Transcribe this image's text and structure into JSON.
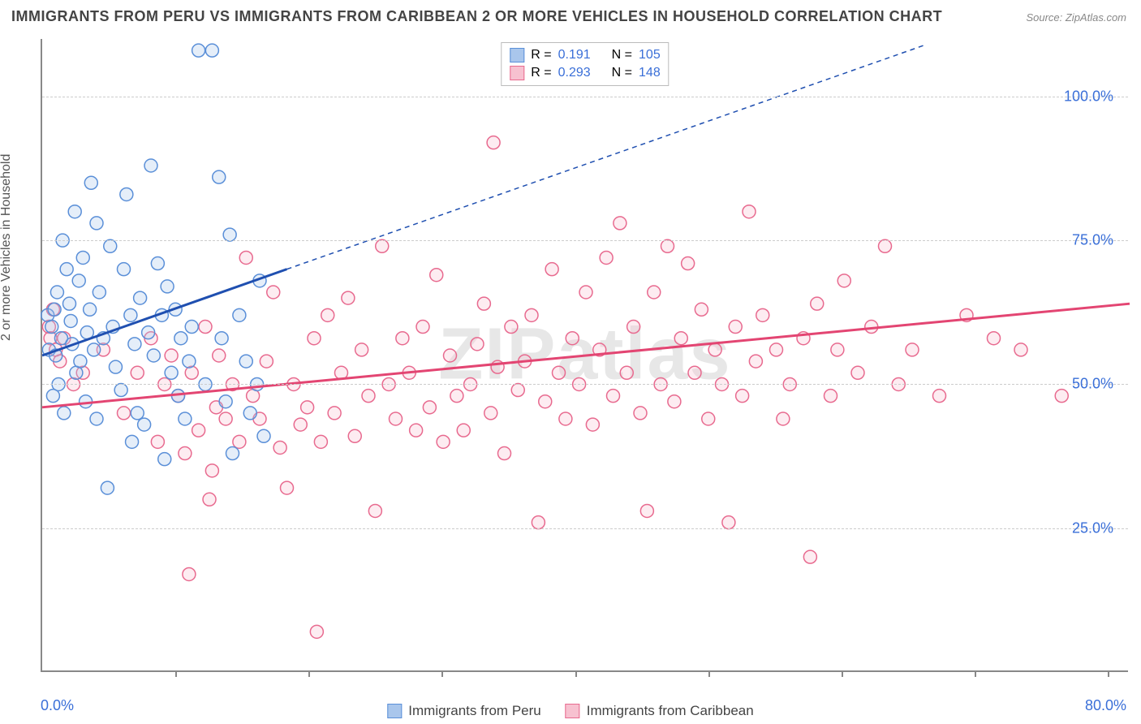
{
  "title": "IMMIGRANTS FROM PERU VS IMMIGRANTS FROM CARIBBEAN 2 OR MORE VEHICLES IN HOUSEHOLD CORRELATION CHART",
  "source": "Source: ZipAtlas.com",
  "watermark": "ZIPatlas",
  "ylabel": "2 or more Vehicles in Household",
  "chart": {
    "type": "scatter",
    "xlim": [
      0,
      80
    ],
    "ylim": [
      0,
      110
    ],
    "xticks": [
      0,
      80
    ],
    "xtick_labels": [
      "0.0%",
      "80.0%"
    ],
    "xtick_minor": [
      9.8,
      19.6,
      29.4,
      39.2,
      49.0,
      58.8,
      68.6,
      78.4
    ],
    "yticks": [
      25,
      50,
      75,
      100
    ],
    "ytick_labels": [
      "25.0%",
      "50.0%",
      "75.0%",
      "100.0%"
    ],
    "grid_color": "#cccccc",
    "axis_color": "#888888",
    "background_color": "#ffffff",
    "marker_radius": 8,
    "marker_stroke_width": 1.5,
    "marker_fill_opacity": 0.3,
    "trend_line_width": 3,
    "trend_dash": "6,5"
  },
  "series": [
    {
      "key": "peru",
      "label": "Immigrants from Peru",
      "color_stroke": "#5a8fd8",
      "color_fill": "#a9c6ec",
      "trend_color": "#1f4fb0",
      "R": "0.191",
      "N": "105",
      "trend": {
        "x1": 0,
        "y1": 55,
        "x2_solid": 18,
        "y2_solid": 70,
        "x2": 65,
        "y2": 109
      },
      "points": [
        [
          0.4,
          62
        ],
        [
          0.5,
          56
        ],
        [
          0.7,
          60
        ],
        [
          0.8,
          48
        ],
        [
          0.9,
          63
        ],
        [
          1.0,
          55
        ],
        [
          1.1,
          66
        ],
        [
          1.2,
          50
        ],
        [
          1.4,
          58
        ],
        [
          1.5,
          75
        ],
        [
          1.6,
          45
        ],
        [
          1.8,
          70
        ],
        [
          2.0,
          64
        ],
        [
          2.1,
          61
        ],
        [
          2.2,
          57
        ],
        [
          2.4,
          80
        ],
        [
          2.5,
          52
        ],
        [
          2.7,
          68
        ],
        [
          2.8,
          54
        ],
        [
          3.0,
          72
        ],
        [
          3.2,
          47
        ],
        [
          3.3,
          59
        ],
        [
          3.5,
          63
        ],
        [
          3.6,
          85
        ],
        [
          3.8,
          56
        ],
        [
          4.0,
          78
        ],
        [
          4.0,
          44
        ],
        [
          4.2,
          66
        ],
        [
          4.5,
          58
        ],
        [
          4.8,
          32
        ],
        [
          5.0,
          74
        ],
        [
          5.2,
          60
        ],
        [
          5.4,
          53
        ],
        [
          5.8,
          49
        ],
        [
          6.0,
          70
        ],
        [
          6.2,
          83
        ],
        [
          6.5,
          62
        ],
        [
          6.6,
          40
        ],
        [
          6.8,
          57
        ],
        [
          7.0,
          45
        ],
        [
          7.2,
          65
        ],
        [
          7.5,
          43
        ],
        [
          7.8,
          59
        ],
        [
          8.0,
          88
        ],
        [
          8.2,
          55
        ],
        [
          8.5,
          71
        ],
        [
          8.8,
          62
        ],
        [
          9.0,
          37
        ],
        [
          9.2,
          67
        ],
        [
          9.5,
          52
        ],
        [
          9.8,
          63
        ],
        [
          10.0,
          48
        ],
        [
          10.2,
          58
        ],
        [
          10.5,
          44
        ],
        [
          10.8,
          54
        ],
        [
          11.0,
          60
        ],
        [
          11.5,
          108
        ],
        [
          12.0,
          50
        ],
        [
          12.5,
          108
        ],
        [
          13.0,
          86
        ],
        [
          13.2,
          58
        ],
        [
          13.5,
          47
        ],
        [
          13.8,
          76
        ],
        [
          14.0,
          38
        ],
        [
          14.5,
          62
        ],
        [
          15.0,
          54
        ],
        [
          15.3,
          45
        ],
        [
          15.8,
          50
        ],
        [
          16.0,
          68
        ],
        [
          16.3,
          41
        ]
      ]
    },
    {
      "key": "caribbean",
      "label": "Immigrants from Caribbean",
      "color_stroke": "#e86a8f",
      "color_fill": "#f7c1d0",
      "trend_color": "#e34572",
      "R": "0.293",
      "N": "148",
      "trend": {
        "x1": 0,
        "y1": 46,
        "x2_solid": 80,
        "y2_solid": 64,
        "x2": 80,
        "y2": 64
      },
      "points": [
        [
          0.5,
          60
        ],
        [
          0.6,
          58
        ],
        [
          0.8,
          63
        ],
        [
          1.0,
          56
        ],
        [
          1.3,
          54
        ],
        [
          1.6,
          58
        ],
        [
          2.3,
          50
        ],
        [
          3.0,
          52
        ],
        [
          4.5,
          56
        ],
        [
          6.0,
          45
        ],
        [
          7.0,
          52
        ],
        [
          8.0,
          58
        ],
        [
          8.5,
          40
        ],
        [
          9.0,
          50
        ],
        [
          9.5,
          55
        ],
        [
          10.0,
          48
        ],
        [
          10.5,
          38
        ],
        [
          10.8,
          17
        ],
        [
          11.0,
          52
        ],
        [
          11.5,
          42
        ],
        [
          12.0,
          60
        ],
        [
          12.3,
          30
        ],
        [
          12.5,
          35
        ],
        [
          12.8,
          46
        ],
        [
          13.0,
          55
        ],
        [
          13.5,
          44
        ],
        [
          14.0,
          50
        ],
        [
          14.5,
          40
        ],
        [
          15.0,
          72
        ],
        [
          15.5,
          48
        ],
        [
          16.0,
          44
        ],
        [
          16.5,
          54
        ],
        [
          17.0,
          66
        ],
        [
          17.5,
          39
        ],
        [
          18.0,
          32
        ],
        [
          18.5,
          50
        ],
        [
          19.0,
          43
        ],
        [
          19.5,
          46
        ],
        [
          20.0,
          58
        ],
        [
          20.2,
          7
        ],
        [
          20.5,
          40
        ],
        [
          21.0,
          62
        ],
        [
          21.5,
          45
        ],
        [
          22.0,
          52
        ],
        [
          22.5,
          65
        ],
        [
          23.0,
          41
        ],
        [
          23.5,
          56
        ],
        [
          24.0,
          48
        ],
        [
          24.5,
          28
        ],
        [
          25.0,
          74
        ],
        [
          25.5,
          50
        ],
        [
          26.0,
          44
        ],
        [
          26.5,
          58
        ],
        [
          27.0,
          52
        ],
        [
          27.5,
          42
        ],
        [
          28.0,
          60
        ],
        [
          28.5,
          46
        ],
        [
          29.0,
          69
        ],
        [
          29.5,
          40
        ],
        [
          30.0,
          55
        ],
        [
          30.5,
          48
        ],
        [
          31.0,
          42
        ],
        [
          31.5,
          50
        ],
        [
          32.0,
          57
        ],
        [
          32.5,
          64
        ],
        [
          33.0,
          45
        ],
        [
          33.2,
          92
        ],
        [
          33.5,
          53
        ],
        [
          34.0,
          38
        ],
        [
          34.5,
          60
        ],
        [
          35.0,
          49
        ],
        [
          35.5,
          54
        ],
        [
          36.0,
          62
        ],
        [
          36.5,
          26
        ],
        [
          37.0,
          47
        ],
        [
          37.5,
          70
        ],
        [
          38.0,
          52
        ],
        [
          38.5,
          44
        ],
        [
          39.0,
          58
        ],
        [
          39.5,
          50
        ],
        [
          40.0,
          66
        ],
        [
          40.5,
          43
        ],
        [
          41.0,
          56
        ],
        [
          41.5,
          72
        ],
        [
          42.0,
          48
        ],
        [
          42.5,
          78
        ],
        [
          43.0,
          52
        ],
        [
          43.5,
          60
        ],
        [
          44.0,
          45
        ],
        [
          44.5,
          28
        ],
        [
          45.0,
          66
        ],
        [
          45.5,
          50
        ],
        [
          46.0,
          74
        ],
        [
          46.5,
          47
        ],
        [
          47.0,
          58
        ],
        [
          47.5,
          71
        ],
        [
          48.0,
          52
        ],
        [
          48.5,
          63
        ],
        [
          49.0,
          44
        ],
        [
          49.5,
          56
        ],
        [
          50.0,
          50
        ],
        [
          50.5,
          26
        ],
        [
          51.0,
          60
        ],
        [
          51.5,
          48
        ],
        [
          52.0,
          80
        ],
        [
          52.5,
          54
        ],
        [
          53.0,
          62
        ],
        [
          54.0,
          56
        ],
        [
          54.5,
          44
        ],
        [
          55.0,
          50
        ],
        [
          56.0,
          58
        ],
        [
          56.5,
          20
        ],
        [
          57.0,
          64
        ],
        [
          58.0,
          48
        ],
        [
          58.5,
          56
        ],
        [
          59.0,
          68
        ],
        [
          60.0,
          52
        ],
        [
          61.0,
          60
        ],
        [
          62.0,
          74
        ],
        [
          63.0,
          50
        ],
        [
          64.0,
          56
        ],
        [
          66.0,
          48
        ],
        [
          68.0,
          62
        ],
        [
          70.0,
          58
        ],
        [
          72.0,
          56
        ],
        [
          75.0,
          48
        ]
      ]
    }
  ],
  "legend_top": {
    "r_prefix": "R =",
    "n_prefix": "N ="
  }
}
